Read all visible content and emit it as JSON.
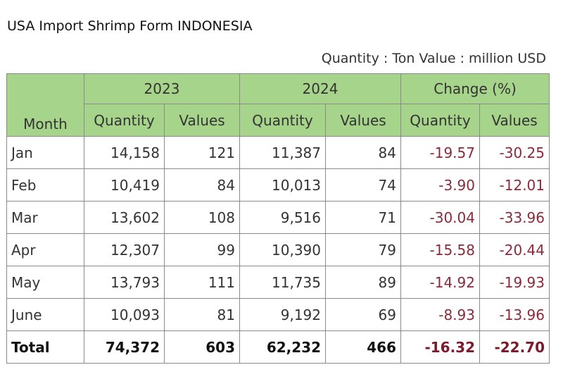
{
  "title": "USA Import Shrimp Form INDONESIA",
  "units": "Quantity : Ton Value : million USD",
  "table": {
    "month_header": "Month",
    "groups": [
      "2023",
      "2024",
      "Change (%)"
    ],
    "subheaders": [
      "Quantity",
      "Values",
      "Quantity",
      "Values",
      "Quantity",
      "Values"
    ],
    "rows": [
      [
        "Jan",
        "14,158",
        "121",
        "11,387",
        "84",
        "-19.57",
        "-30.25"
      ],
      [
        "Feb",
        "10,419",
        "84",
        "10,013",
        "74",
        "-3.90",
        "-12.01"
      ],
      [
        "Mar",
        "13,602",
        "108",
        "9,516",
        "71",
        "-30.04",
        "-33.96"
      ],
      [
        "Apr",
        "12,307",
        "99",
        "10,390",
        "79",
        "-15.58",
        "-20.44"
      ],
      [
        "May",
        "13,793",
        "111",
        "11,735",
        "89",
        "-14.92",
        "-19.93"
      ],
      [
        "June",
        "10,093",
        "81",
        "9,192",
        "69",
        "-8.93",
        "-13.96"
      ]
    ],
    "total": [
      "Total",
      "74,372",
      "603",
      "62,232",
      "466",
      "-16.32",
      "-22.70"
    ]
  }
}
